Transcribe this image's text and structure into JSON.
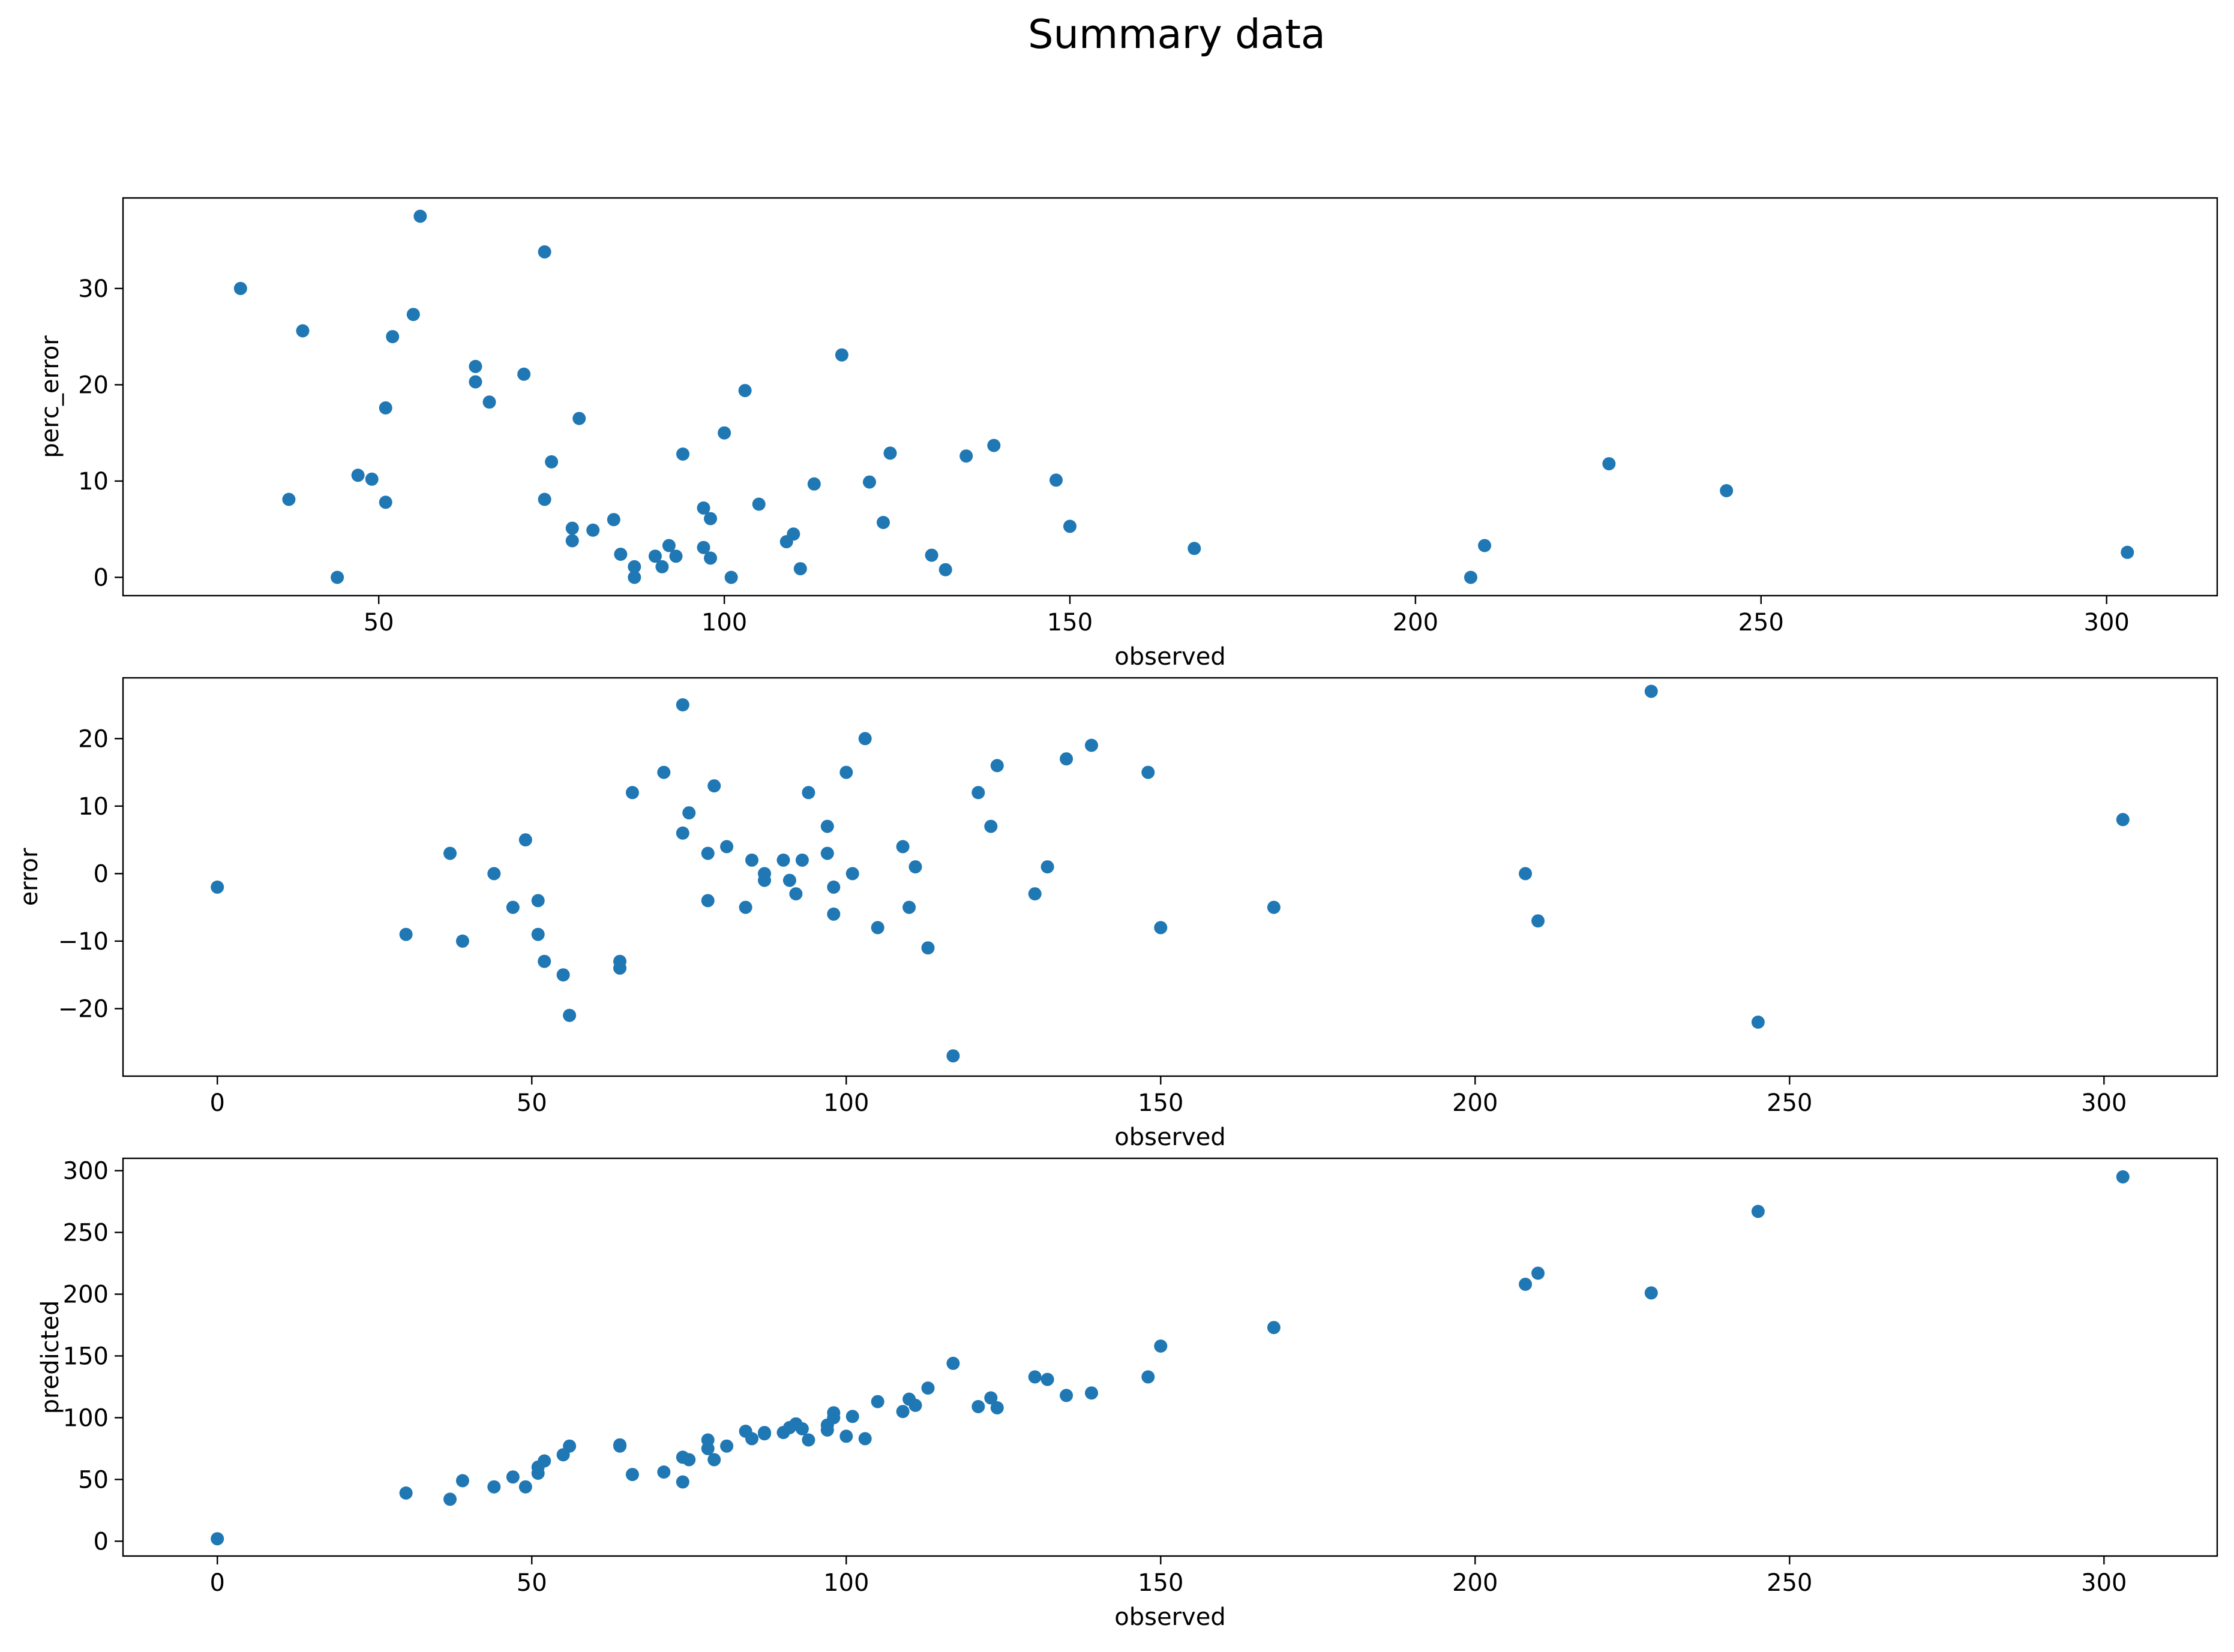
{
  "figure": {
    "title": "Summary data"
  },
  "chart_data": [
    {
      "type": "scatter",
      "title": "",
      "xlabel": "observed",
      "ylabel": "perc_error",
      "xlim": [
        13,
        316
      ],
      "ylim": [
        -1.9,
        39.4
      ],
      "xticks": [
        50,
        100,
        150,
        200,
        250,
        300
      ],
      "yticks": [
        0,
        10,
        20,
        30
      ],
      "grid": false,
      "color": "#1f77b4",
      "points": [
        [
          30,
          30.0
        ],
        [
          37,
          8.1
        ],
        [
          39,
          25.6
        ],
        [
          44,
          0.0
        ],
        [
          47,
          10.6
        ],
        [
          49,
          10.2
        ],
        [
          51,
          17.6
        ],
        [
          51,
          7.8
        ],
        [
          52,
          25.0
        ],
        [
          55,
          27.3
        ],
        [
          56,
          37.5
        ],
        [
          64,
          21.9
        ],
        [
          64,
          20.3
        ],
        [
          66,
          18.2
        ],
        [
          71,
          21.1
        ],
        [
          74,
          33.8
        ],
        [
          74,
          8.1
        ],
        [
          75,
          12.0
        ],
        [
          78,
          5.1
        ],
        [
          78,
          3.8
        ],
        [
          79,
          16.5
        ],
        [
          81,
          4.9
        ],
        [
          84,
          6.0
        ],
        [
          85,
          2.4
        ],
        [
          87,
          1.1
        ],
        [
          87,
          0.0
        ],
        [
          90,
          2.2
        ],
        [
          91,
          1.1
        ],
        [
          92,
          3.3
        ],
        [
          93,
          2.2
        ],
        [
          94,
          12.8
        ],
        [
          97,
          7.2
        ],
        [
          97,
          3.1
        ],
        [
          98,
          6.1
        ],
        [
          98,
          2.0
        ],
        [
          100,
          15.0
        ],
        [
          101,
          0.0
        ],
        [
          103,
          19.4
        ],
        [
          105,
          7.6
        ],
        [
          109,
          3.7
        ],
        [
          110,
          4.5
        ],
        [
          111,
          0.9
        ],
        [
          113,
          9.7
        ],
        [
          117,
          23.1
        ],
        [
          121,
          9.9
        ],
        [
          123,
          5.7
        ],
        [
          124,
          12.9
        ],
        [
          130,
          2.3
        ],
        [
          132,
          0.8
        ],
        [
          135,
          12.6
        ],
        [
          139,
          13.7
        ],
        [
          148,
          10.1
        ],
        [
          150,
          5.3
        ],
        [
          168,
          3.0
        ],
        [
          208,
          0.0
        ],
        [
          210,
          3.3
        ],
        [
          228,
          11.8
        ],
        [
          245,
          9.0
        ],
        [
          303,
          2.6
        ]
      ]
    },
    {
      "type": "scatter",
      "title": "",
      "xlabel": "observed",
      "ylabel": "error",
      "xlim": [
        -15,
        318
      ],
      "ylim": [
        -30,
        29
      ],
      "xticks": [
        0,
        50,
        100,
        150,
        200,
        250,
        300
      ],
      "yticks": [
        -20,
        -10,
        0,
        10,
        20
      ],
      "grid": false,
      "color": "#1f77b4",
      "points": [
        [
          0,
          -2
        ],
        [
          30,
          -9
        ],
        [
          37,
          3
        ],
        [
          39,
          -10
        ],
        [
          44,
          0
        ],
        [
          47,
          -5
        ],
        [
          49,
          5
        ],
        [
          51,
          -4
        ],
        [
          51,
          -9
        ],
        [
          52,
          -13
        ],
        [
          55,
          -15
        ],
        [
          56,
          -21
        ],
        [
          64,
          -13
        ],
        [
          64,
          -14
        ],
        [
          66,
          12
        ],
        [
          71,
          15
        ],
        [
          74,
          6
        ],
        [
          74,
          25
        ],
        [
          75,
          9
        ],
        [
          78,
          3
        ],
        [
          78,
          -4
        ],
        [
          79,
          13
        ],
        [
          81,
          4
        ],
        [
          84,
          -5
        ],
        [
          85,
          2
        ],
        [
          87,
          -1
        ],
        [
          87,
          0
        ],
        [
          90,
          2
        ],
        [
          91,
          -1
        ],
        [
          92,
          -3
        ],
        [
          93,
          2
        ],
        [
          94,
          12
        ],
        [
          97,
          7
        ],
        [
          97,
          3
        ],
        [
          98,
          -6
        ],
        [
          98,
          -2
        ],
        [
          100,
          15
        ],
        [
          101,
          0
        ],
        [
          103,
          20
        ],
        [
          105,
          -8
        ],
        [
          109,
          4
        ],
        [
          110,
          -5
        ],
        [
          111,
          1
        ],
        [
          113,
          -11
        ],
        [
          117,
          -27
        ],
        [
          121,
          12
        ],
        [
          123,
          7
        ],
        [
          124,
          16
        ],
        [
          130,
          -3
        ],
        [
          132,
          1
        ],
        [
          135,
          17
        ],
        [
          139,
          19
        ],
        [
          148,
          15
        ],
        [
          150,
          -8
        ],
        [
          168,
          -5
        ],
        [
          208,
          0
        ],
        [
          210,
          -7
        ],
        [
          228,
          27
        ],
        [
          245,
          -22
        ],
        [
          303,
          8
        ]
      ]
    },
    {
      "type": "scatter",
      "title": "",
      "xlabel": "observed",
      "ylabel": "predicted",
      "xlim": [
        -15,
        318
      ],
      "ylim": [
        -12,
        310
      ],
      "xticks": [
        0,
        50,
        100,
        150,
        200,
        250,
        300
      ],
      "yticks": [
        0,
        50,
        100,
        150,
        200,
        250,
        300
      ],
      "grid": false,
      "color": "#1f77b4",
      "points": [
        [
          0,
          2
        ],
        [
          30,
          39
        ],
        [
          37,
          34
        ],
        [
          39,
          49
        ],
        [
          44,
          44
        ],
        [
          47,
          52
        ],
        [
          49,
          44
        ],
        [
          51,
          55
        ],
        [
          51,
          60
        ],
        [
          52,
          65
        ],
        [
          55,
          70
        ],
        [
          56,
          77
        ],
        [
          64,
          77
        ],
        [
          64,
          78
        ],
        [
          66,
          54
        ],
        [
          71,
          56
        ],
        [
          74,
          48
        ],
        [
          74,
          68
        ],
        [
          75,
          66
        ],
        [
          78,
          75
        ],
        [
          78,
          82
        ],
        [
          79,
          66
        ],
        [
          81,
          77
        ],
        [
          84,
          89
        ],
        [
          85,
          83
        ],
        [
          87,
          88
        ],
        [
          87,
          87
        ],
        [
          90,
          88
        ],
        [
          91,
          92
        ],
        [
          92,
          95
        ],
        [
          93,
          91
        ],
        [
          94,
          82
        ],
        [
          97,
          90
        ],
        [
          97,
          94
        ],
        [
          98,
          104
        ],
        [
          98,
          100
        ],
        [
          100,
          85
        ],
        [
          101,
          101
        ],
        [
          103,
          83
        ],
        [
          105,
          113
        ],
        [
          109,
          105
        ],
        [
          110,
          115
        ],
        [
          111,
          110
        ],
        [
          113,
          124
        ],
        [
          117,
          144
        ],
        [
          121,
          109
        ],
        [
          123,
          116
        ],
        [
          124,
          108
        ],
        [
          130,
          133
        ],
        [
          132,
          131
        ],
        [
          135,
          118
        ],
        [
          139,
          120
        ],
        [
          148,
          133
        ],
        [
          150,
          158
        ],
        [
          168,
          173
        ],
        [
          208,
          208
        ],
        [
          210,
          217
        ],
        [
          228,
          201
        ],
        [
          245,
          267
        ],
        [
          303,
          295
        ]
      ]
    }
  ]
}
